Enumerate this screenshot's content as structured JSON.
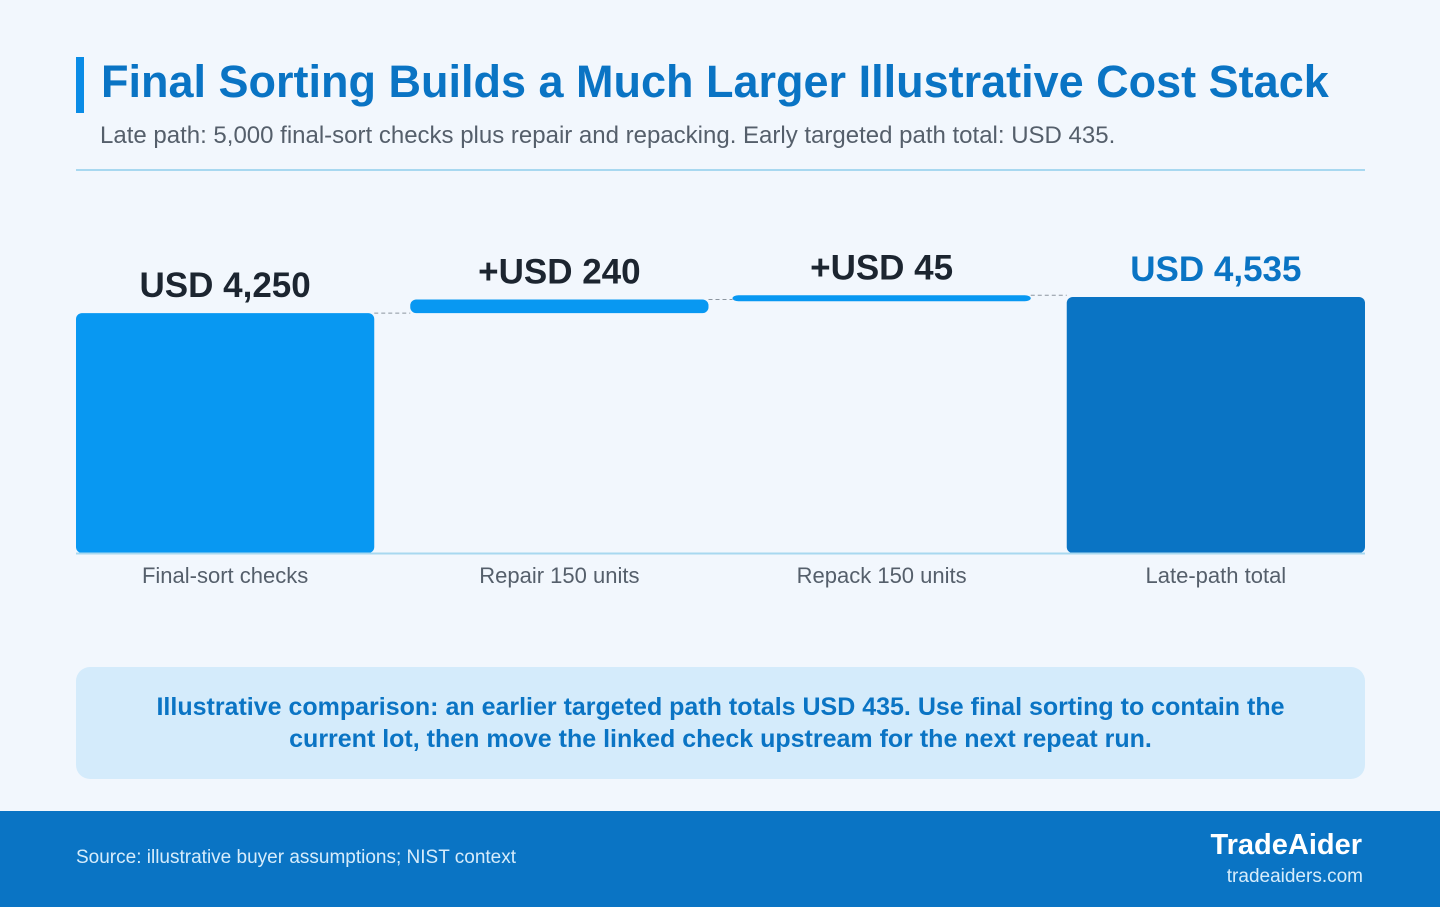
{
  "header": {
    "title": "Final Sorting Builds a Much Larger Illustrative Cost Stack",
    "subtitle": "Late path: 5,000 final-sort checks plus repair and repacking. Early targeted path total: USD 435."
  },
  "chart_data": {
    "type": "bar",
    "subtype": "waterfall",
    "categories": [
      "Final-sort checks",
      "Repair 150 units",
      "Repack 150 units",
      "Late-path total"
    ],
    "values": [
      4250,
      240,
      45,
      4535
    ],
    "kinds": [
      "start",
      "increase",
      "increase",
      "total"
    ],
    "value_labels": [
      "USD 4,250",
      "+USD 240",
      "+USD 45",
      "USD 4,535"
    ],
    "ylim": [
      0,
      4535
    ],
    "grid": false,
    "legend": "none",
    "colors": {
      "start": "#0898f2",
      "increase": "#0898f2",
      "total": "#0a74c4",
      "label_default": "#1c2530",
      "label_total": "#0a74c4",
      "connector": "#8c96a0",
      "baseline": "#a8d8f0",
      "category_text": "#555f6b"
    }
  },
  "callout": {
    "text": "Illustrative comparison: an earlier targeted path totals USD 435. Use final sorting to contain the current lot, then move the linked check upstream for the next repeat run."
  },
  "footer": {
    "source": "Source: illustrative buyer assumptions; NIST context",
    "brand": "TradeAider",
    "url": "tradeaiders.com"
  }
}
